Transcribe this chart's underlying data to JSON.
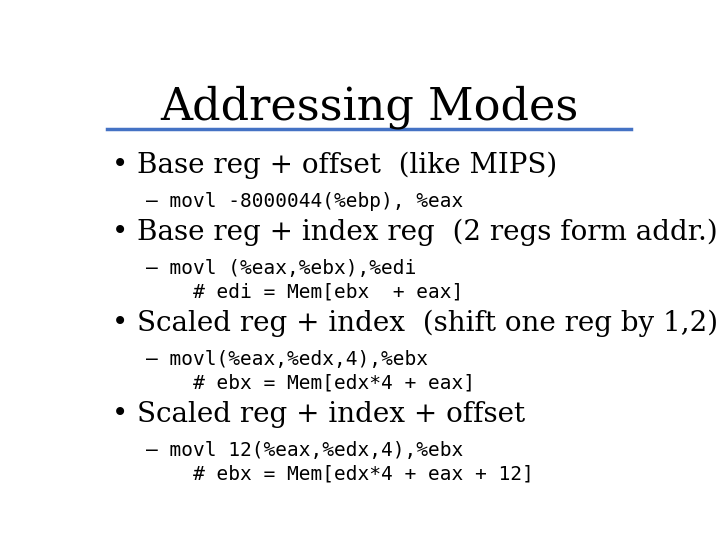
{
  "title": "Addressing Modes",
  "title_fontsize": 32,
  "title_font": "serif",
  "background_color": "#ffffff",
  "line_color": "#4472c4",
  "bullet_fontsize": 20,
  "bullet_font": "serif",
  "code_fontsize": 14,
  "code_font": "monospace",
  "items": [
    {
      "bullet": "Base reg + offset  (like MIPS)",
      "code_lines": [
        "– movl -8000044(%ebp), %eax"
      ]
    },
    {
      "bullet": "Base reg + index reg  (2 regs form addr.)",
      "code_lines": [
        "– movl (%eax,%ebx),%edi",
        "    # edi = Mem[ebx  + eax]"
      ]
    },
    {
      "bullet": "Scaled reg + index  (shift one reg by 1,2)",
      "code_lines": [
        "– movl(%eax,%edx,4),%ebx",
        "    # ebx = Mem[edx*4 + eax]"
      ]
    },
    {
      "bullet": "Scaled reg + index + offset",
      "code_lines": [
        "– movl 12(%eax,%edx,4),%ebx",
        "    # ebx = Mem[edx*4 + eax + 12]"
      ]
    }
  ]
}
